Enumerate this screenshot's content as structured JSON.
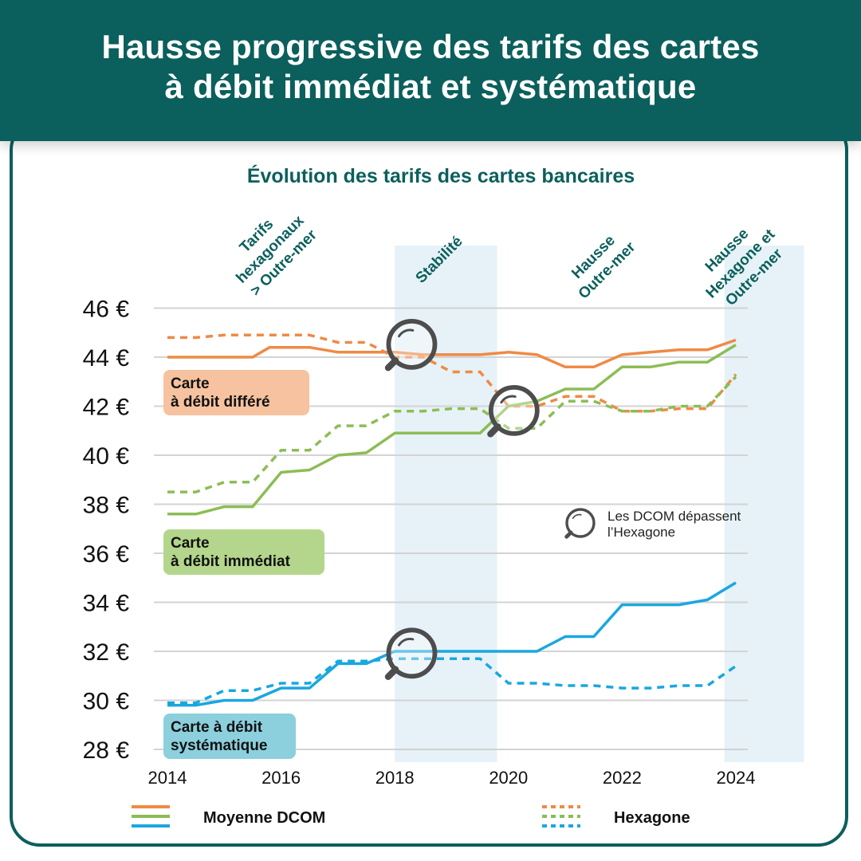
{
  "header": {
    "title_line1": "Hausse progressive des tarifs des cartes",
    "title_line2": "à débit immédiat et systématique"
  },
  "colors": {
    "header_bg": "#0b5f5c",
    "differe": "#ef8a45",
    "immediat": "#8cbd55",
    "systematique": "#19a7e0",
    "band": "#e6f2f7",
    "magnifier": "#4d4d4d"
  },
  "chart_data": {
    "type": "line",
    "title": "Évolution des tarifs des cartes bancaires",
    "xlim": [
      2014,
      2024
    ],
    "xticks": [
      "2014",
      "2016",
      "2018",
      "2020",
      "2022",
      "2024"
    ],
    "ylim": [
      28,
      46
    ],
    "yticks": [
      "28 €",
      "30 €",
      "32 €",
      "34 €",
      "36 €",
      "38 €",
      "40 €",
      "42 €",
      "44 €",
      "46 €"
    ],
    "grid": true,
    "phases": [
      {
        "label_lines": [
          "Tarifs",
          "hexagonaux",
          "> Outre-mer"
        ],
        "shaded": false
      },
      {
        "label_lines": [
          "Stabilité"
        ],
        "shaded": true,
        "x_start": 2018,
        "x_end": 2019.8
      },
      {
        "label_lines": [
          "Hausse",
          "Outre-mer"
        ],
        "shaded": false
      },
      {
        "label_lines": [
          "Hausse",
          "Hexagone et",
          "Outre-mer"
        ],
        "shaded": true,
        "x_start": 2023.8,
        "x_end": 2025.2
      }
    ],
    "card_labels": [
      {
        "key": "differe",
        "lines": [
          "Carte",
          "à débit différé"
        ]
      },
      {
        "key": "immediat",
        "lines": [
          "Carte",
          "à débit immédiat"
        ]
      },
      {
        "key": "systematique",
        "lines": [
          "Carte à débit",
          "systématique"
        ]
      }
    ],
    "series": [
      {
        "key": "differe",
        "group": "Moyenne DCOM",
        "style": "solid",
        "x": [
          2014,
          2014.5,
          2015,
          2015.5,
          2015.8,
          2016,
          2016.5,
          2017,
          2017.5,
          2018,
          2018.5,
          2019,
          2019.5,
          2020,
          2020.5,
          2021,
          2021.5,
          2022,
          2022.5,
          2023,
          2023.5,
          2024
        ],
        "y": [
          44.0,
          44.0,
          44.0,
          44.0,
          44.4,
          44.4,
          44.4,
          44.2,
          44.2,
          44.2,
          44.1,
          44.1,
          44.1,
          44.2,
          44.1,
          43.6,
          43.6,
          44.1,
          44.2,
          44.3,
          44.3,
          44.7
        ]
      },
      {
        "key": "differe",
        "group": "Hexagone",
        "style": "dashed",
        "x": [
          2014,
          2014.5,
          2015,
          2015.5,
          2016,
          2016.5,
          2017,
          2017.5,
          2018,
          2018.5,
          2019,
          2019.5,
          2020,
          2020.5,
          2021,
          2021.5,
          2022,
          2022.5,
          2023,
          2023.5,
          2024
        ],
        "y": [
          44.8,
          44.8,
          44.9,
          44.9,
          44.9,
          44.9,
          44.6,
          44.6,
          44.0,
          44.0,
          43.4,
          43.4,
          42.0,
          42.0,
          42.4,
          42.4,
          41.8,
          41.8,
          41.9,
          41.9,
          43.3
        ]
      },
      {
        "key": "immediat",
        "group": "Moyenne DCOM",
        "style": "solid",
        "x": [
          2014,
          2014.5,
          2015,
          2015.5,
          2016,
          2016.5,
          2017,
          2017.5,
          2018,
          2018.5,
          2019,
          2019.5,
          2020,
          2020.5,
          2021,
          2021.5,
          2022,
          2022.5,
          2023,
          2023.5,
          2024
        ],
        "y": [
          37.6,
          37.6,
          37.9,
          37.9,
          39.3,
          39.4,
          40.0,
          40.1,
          40.9,
          40.9,
          40.9,
          40.9,
          42.0,
          42.2,
          42.7,
          42.7,
          43.6,
          43.6,
          43.8,
          43.8,
          44.5
        ]
      },
      {
        "key": "immediat",
        "group": "Hexagone",
        "style": "dashed",
        "x": [
          2014,
          2014.5,
          2015,
          2015.5,
          2016,
          2016.5,
          2017,
          2017.5,
          2018,
          2018.5,
          2019,
          2019.5,
          2020,
          2020.5,
          2021,
          2021.5,
          2022,
          2022.5,
          2023,
          2023.5,
          2024
        ],
        "y": [
          38.5,
          38.5,
          38.9,
          38.9,
          40.2,
          40.2,
          41.2,
          41.2,
          41.8,
          41.8,
          41.9,
          41.9,
          41.1,
          41.1,
          42.2,
          42.2,
          41.8,
          41.8,
          42.0,
          42.0,
          43.2
        ]
      },
      {
        "key": "systematique",
        "group": "Moyenne DCOM",
        "style": "solid",
        "x": [
          2014,
          2014.5,
          2015,
          2015.5,
          2016,
          2016.5,
          2017,
          2017.5,
          2018,
          2018.5,
          2019,
          2019.5,
          2020,
          2020.5,
          2021,
          2021.5,
          2022,
          2022.5,
          2023,
          2023.5,
          2024
        ],
        "y": [
          29.8,
          29.8,
          30.0,
          30.0,
          30.5,
          30.5,
          31.5,
          31.5,
          32.0,
          32.0,
          32.0,
          32.0,
          32.0,
          32.0,
          32.6,
          32.6,
          33.9,
          33.9,
          33.9,
          34.1,
          34.8
        ]
      },
      {
        "key": "systematique",
        "group": "Hexagone",
        "style": "dashed",
        "x": [
          2014,
          2014.5,
          2015,
          2015.5,
          2016,
          2016.5,
          2017,
          2017.5,
          2018,
          2018.5,
          2019,
          2019.5,
          2020,
          2020.5,
          2021,
          2021.5,
          2022,
          2022.5,
          2023,
          2023.5,
          2024
        ],
        "y": [
          29.9,
          29.9,
          30.4,
          30.4,
          30.7,
          30.7,
          31.6,
          31.6,
          31.7,
          31.7,
          31.7,
          31.7,
          30.7,
          30.7,
          30.6,
          30.6,
          30.5,
          30.5,
          30.6,
          30.6,
          31.4
        ]
      }
    ],
    "crossings": [
      {
        "x": 2018.2,
        "y": 44.2
      },
      {
        "x": 2020.0,
        "y": 41.5
      },
      {
        "x": 2018.2,
        "y": 31.6
      }
    ],
    "annotation": {
      "lines": [
        "Les DCOM dépassent",
        "l’Hexagone"
      ]
    },
    "legend": {
      "solid_label": "Moyenne DCOM",
      "dashed_label": "Hexagone",
      "position": "bottom"
    }
  }
}
